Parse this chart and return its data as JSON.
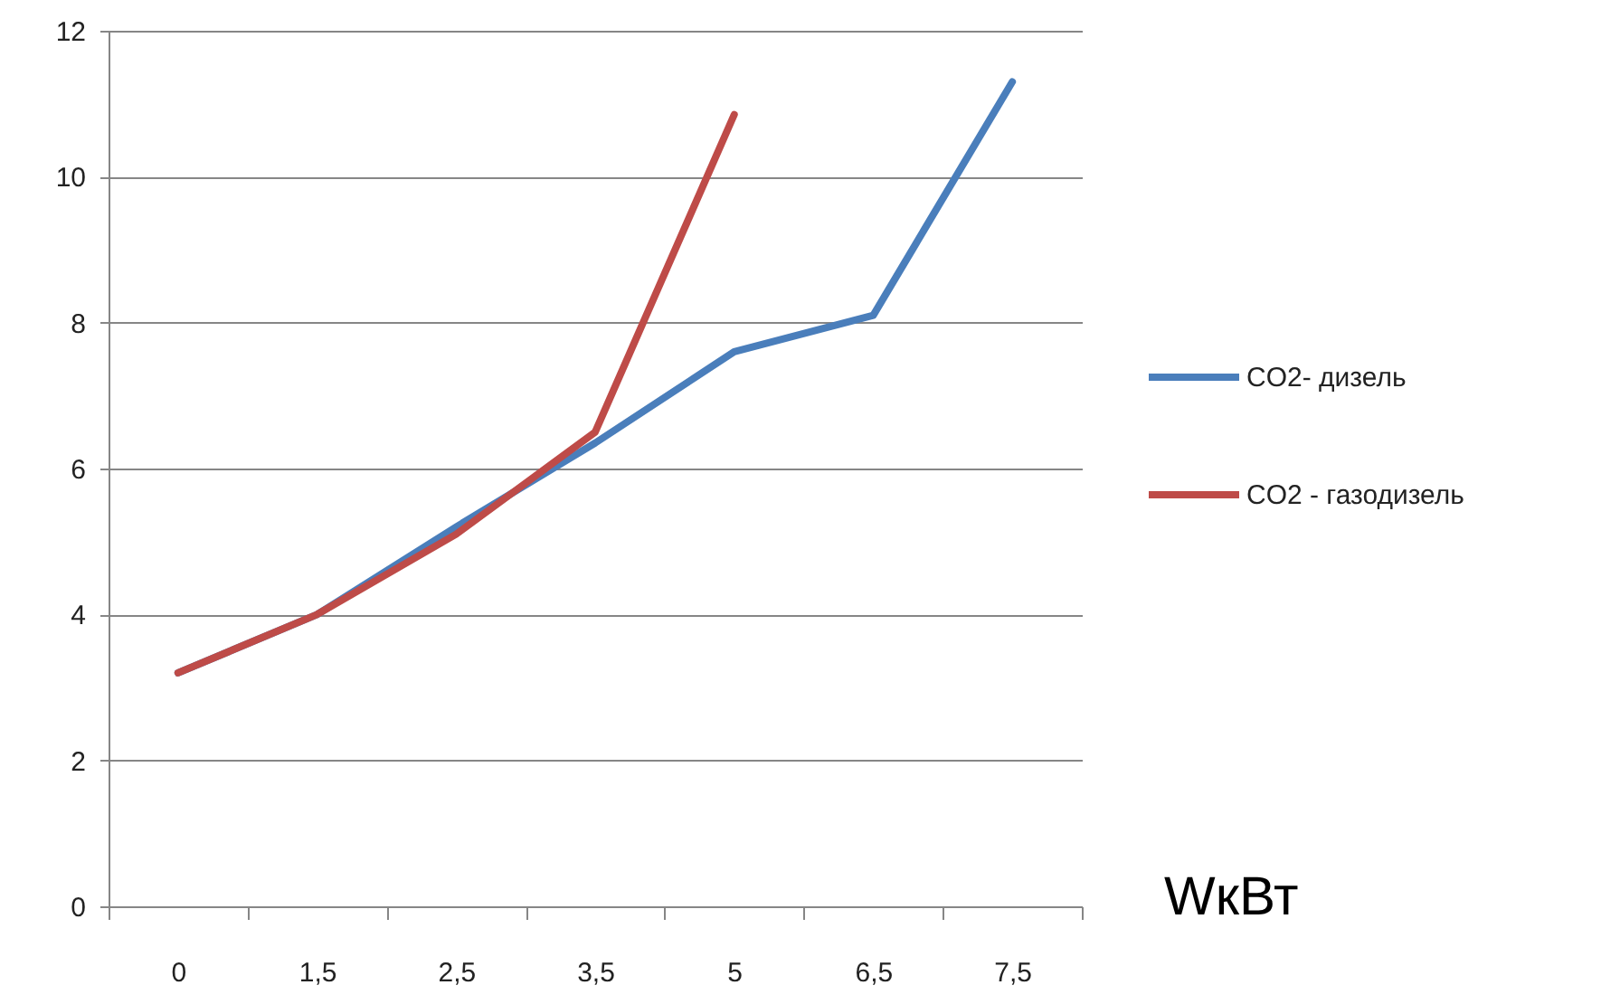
{
  "chart_data": {
    "type": "line",
    "xlabel": "WкВт",
    "categories": [
      "0",
      "1,5",
      "2,5",
      "3,5",
      "5",
      "6,5",
      "7,5"
    ],
    "series": [
      {
        "name": "CO2- дизель",
        "color": "#4a7ebb",
        "values": [
          3.2,
          4.0,
          5.2,
          6.35,
          7.6,
          8.1,
          11.3
        ]
      },
      {
        "name": "CO2 - газодизель",
        "color": "#be4b48",
        "values": [
          3.2,
          4.0,
          5.1,
          6.5,
          10.85,
          null,
          null
        ]
      }
    ],
    "ylim": [
      0,
      12
    ],
    "yticks": [
      0,
      2,
      4,
      6,
      8,
      10,
      12
    ],
    "grid": "y",
    "legend": "right"
  }
}
